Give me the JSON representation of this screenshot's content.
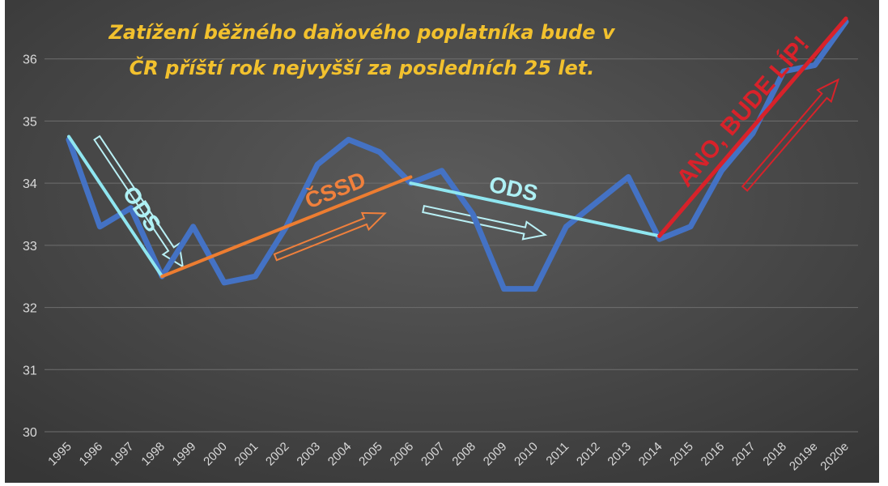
{
  "chart_data": {
    "type": "line",
    "title_lines": [
      "Zatížení běžného daňového poplatníka bude v",
      "ČR příští rok nejvyšší za posledních 25 let."
    ],
    "xlabel": "",
    "ylabel": "",
    "ylim": [
      30,
      36.7
    ],
    "yticks": [
      30,
      31,
      32,
      33,
      34,
      35,
      36
    ],
    "grid": true,
    "categories": [
      "1995",
      "1996",
      "1997",
      "1998",
      "1999",
      "2000",
      "2001",
      "2002",
      "2003",
      "2004",
      "2005",
      "2006",
      "2007",
      "2008",
      "2009",
      "2010",
      "2011",
      "2012",
      "2013",
      "2014",
      "2015",
      "2016",
      "2017",
      "2018",
      "2019e",
      "2020e"
    ],
    "series": [
      {
        "color": "#4472c4",
        "values": [
          34.7,
          33.3,
          33.6,
          32.5,
          33.3,
          32.4,
          32.5,
          33.3,
          34.3,
          34.7,
          34.5,
          34.0,
          34.2,
          33.5,
          32.3,
          32.3,
          33.3,
          33.7,
          34.1,
          33.1,
          33.3,
          34.2,
          34.8,
          35.8,
          35.9,
          36.6
        ]
      }
    ],
    "trend_lines": [
      {
        "label": "ODS",
        "color": "#8fe6f0",
        "from": {
          "x": "1995",
          "y": 34.75
        },
        "to": {
          "x": "1998",
          "y": 32.5
        }
      },
      {
        "label": "ČSSD",
        "color": "#ed7d31",
        "from": {
          "x": "1998",
          "y": 32.5
        },
        "to": {
          "x": "2006",
          "y": 34.1
        }
      },
      {
        "label": "ODS",
        "color": "#8fe6f0",
        "from": {
          "x": "2006",
          "y": 34.0
        },
        "to": {
          "x": "2014",
          "y": 33.15
        }
      },
      {
        "label": "ANO, BUDE LÍP!",
        "color": "#d8222a",
        "from": {
          "x": "2014",
          "y": 33.15
        },
        "to": {
          "x": "2020e",
          "y": 36.65
        }
      }
    ]
  }
}
